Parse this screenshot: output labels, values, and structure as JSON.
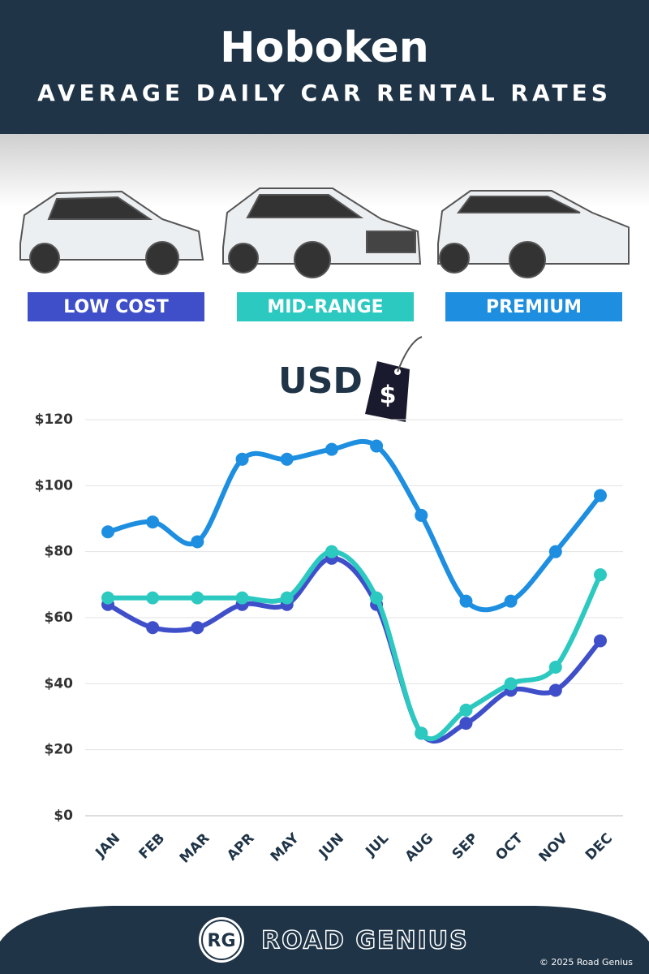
{
  "chart_data": {
    "type": "line",
    "title": "Hoboken",
    "subtitle": "AVERAGE DAILY CAR RENTAL RATES",
    "unit_label": "USD",
    "categories": [
      "JAN",
      "FEB",
      "MAR",
      "APR",
      "MAY",
      "JUN",
      "JUL",
      "AUG",
      "SEP",
      "OCT",
      "NOV",
      "DEC"
    ],
    "series": [
      {
        "name": "LOW COST",
        "color": "#3f4fc9",
        "values": [
          64,
          57,
          57,
          64,
          64,
          78,
          64,
          25,
          28,
          38,
          38,
          53
        ]
      },
      {
        "name": "MID-RANGE",
        "color": "#2cc9c0",
        "values": [
          66,
          66,
          66,
          66,
          66,
          80,
          66,
          25,
          32,
          40,
          45,
          73
        ]
      },
      {
        "name": "PREMIUM",
        "color": "#1e8fe0",
        "values": [
          86,
          89,
          83,
          108,
          108,
          111,
          112,
          91,
          65,
          65,
          80,
          97
        ]
      }
    ],
    "ylim": [
      0,
      120
    ],
    "yticks": [
      {
        "value": 0,
        "label": "$0"
      },
      {
        "value": 20,
        "label": "$20"
      },
      {
        "value": 40,
        "label": "$40"
      },
      {
        "value": 60,
        "label": "$60"
      },
      {
        "value": 80,
        "label": "$80"
      },
      {
        "value": 100,
        "label": "$100"
      },
      {
        "value": 120,
        "label": "$120"
      }
    ],
    "grid": true,
    "footer": {
      "logo": "RG",
      "brand": "ROAD GENIUS",
      "copyright": "© 2025 Road Genius"
    }
  }
}
